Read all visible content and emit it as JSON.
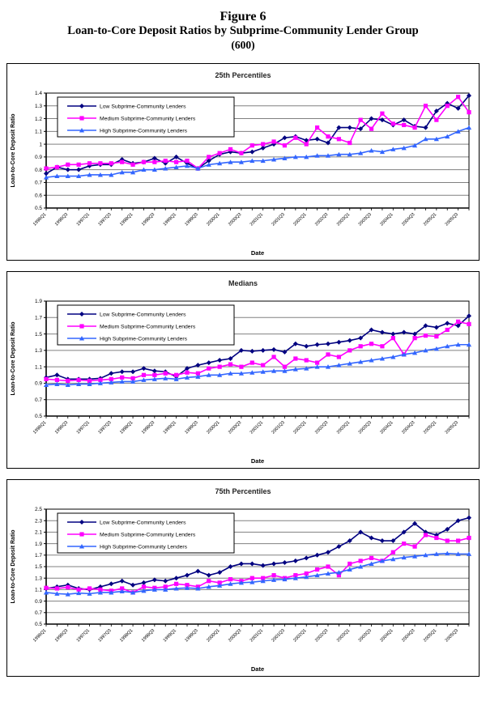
{
  "figure": {
    "title_line1": "Figure 6",
    "title_line2": "Loan-to-Core Deposit Ratios by Subprime-Community Lender Group",
    "title_line3": "(600)"
  },
  "colors": {
    "low": "#000080",
    "medium": "#FF00FF",
    "high": "#3366FF",
    "grid": "#808080",
    "axis": "#000000"
  },
  "chart_data": [
    {
      "type": "line",
      "title": "25th Percentiles",
      "xlabel": "Date",
      "ylabel": "Loan-to-Core Deposit Ratio",
      "ylim": [
        0.5,
        1.4
      ],
      "ytick_step": 0.1,
      "grid": true,
      "legend_position": "top-left",
      "xtick_every": 2,
      "x": [
        "1996Q1",
        "1996Q2",
        "1996Q3",
        "1996Q4",
        "1997Q1",
        "1997Q2",
        "1997Q3",
        "1997Q4",
        "1998Q1",
        "1998Q2",
        "1998Q3",
        "1998Q4",
        "1999Q1",
        "1999Q2",
        "1999Q3",
        "1999Q4",
        "2000Q1",
        "2000Q2",
        "2000Q3",
        "2000Q4",
        "2001Q1",
        "2001Q2",
        "2001Q3",
        "2001Q4",
        "2002Q1",
        "2002Q2",
        "2002Q3",
        "2002Q4",
        "2003Q1",
        "2003Q2",
        "2003Q3",
        "2003Q4",
        "2004Q1",
        "2004Q2",
        "2004Q3",
        "2004Q4",
        "2005Q1",
        "2005Q2",
        "2005Q3",
        "2005Q4"
      ],
      "series": [
        {
          "name": "Low Subprime-Community Lenders",
          "color": "#000080",
          "marker": "diamond",
          "values": [
            0.77,
            0.82,
            0.8,
            0.8,
            0.83,
            0.84,
            0.84,
            0.88,
            0.85,
            0.86,
            0.89,
            0.85,
            0.9,
            0.85,
            0.81,
            0.87,
            0.92,
            0.94,
            0.93,
            0.94,
            0.97,
            1.0,
            1.05,
            1.06,
            1.03,
            1.04,
            1.01,
            1.13,
            1.13,
            1.12,
            1.2,
            1.19,
            1.15,
            1.19,
            1.14,
            1.13,
            1.26,
            1.32,
            1.28,
            1.38
          ]
        },
        {
          "name": "Medium Subprime-Community Lenders",
          "color": "#FF00FF",
          "marker": "square",
          "values": [
            0.81,
            0.82,
            0.84,
            0.84,
            0.85,
            0.85,
            0.85,
            0.86,
            0.84,
            0.86,
            0.86,
            0.87,
            0.86,
            0.87,
            0.81,
            0.9,
            0.93,
            0.96,
            0.93,
            0.99,
            1.0,
            1.02,
            0.99,
            1.05,
            1.0,
            1.13,
            1.06,
            1.04,
            1.01,
            1.19,
            1.12,
            1.24,
            1.16,
            1.15,
            1.13,
            1.3,
            1.19,
            1.3,
            1.37,
            1.25
          ]
        },
        {
          "name": "High Subprime-Community Lenders",
          "color": "#3366FF",
          "marker": "triangle",
          "values": [
            0.74,
            0.75,
            0.75,
            0.75,
            0.76,
            0.76,
            0.76,
            0.78,
            0.78,
            0.8,
            0.8,
            0.81,
            0.82,
            0.83,
            0.81,
            0.84,
            0.85,
            0.86,
            0.86,
            0.87,
            0.87,
            0.88,
            0.89,
            0.9,
            0.9,
            0.91,
            0.91,
            0.92,
            0.92,
            0.93,
            0.95,
            0.94,
            0.96,
            0.97,
            0.99,
            1.04,
            1.04,
            1.06,
            1.1,
            1.13
          ]
        }
      ]
    },
    {
      "type": "line",
      "title": "Medians",
      "xlabel": "Date",
      "ylabel": "Loan-to-Core Deposit Ratio",
      "ylim": [
        0.5,
        1.9
      ],
      "ytick_step": 0.2,
      "grid": true,
      "legend_position": "top-left",
      "xtick_every": 2,
      "x": [
        "1996Q1",
        "1996Q2",
        "1996Q3",
        "1996Q4",
        "1997Q1",
        "1997Q2",
        "1997Q3",
        "1997Q4",
        "1998Q1",
        "1998Q2",
        "1998Q3",
        "1998Q4",
        "1999Q1",
        "1999Q2",
        "1999Q3",
        "1999Q4",
        "2000Q1",
        "2000Q2",
        "2000Q3",
        "2000Q4",
        "2001Q1",
        "2001Q2",
        "2001Q3",
        "2001Q4",
        "2002Q1",
        "2002Q2",
        "2002Q3",
        "2002Q4",
        "2003Q1",
        "2003Q2",
        "2003Q3",
        "2003Q4",
        "2004Q1",
        "2004Q2",
        "2004Q3",
        "2004Q4",
        "2005Q1",
        "2005Q2",
        "2005Q3",
        "2005Q4"
      ],
      "series": [
        {
          "name": "Low Subprime-Community Lenders",
          "color": "#000080",
          "marker": "diamond",
          "values": [
            0.97,
            1.0,
            0.95,
            0.95,
            0.95,
            0.96,
            1.02,
            1.04,
            1.04,
            1.08,
            1.05,
            1.04,
            0.98,
            1.08,
            1.12,
            1.15,
            1.18,
            1.2,
            1.3,
            1.29,
            1.3,
            1.31,
            1.28,
            1.38,
            1.35,
            1.37,
            1.38,
            1.4,
            1.42,
            1.45,
            1.55,
            1.52,
            1.5,
            1.52,
            1.5,
            1.6,
            1.58,
            1.63,
            1.6,
            1.72
          ]
        },
        {
          "name": "Medium Subprime-Community Lenders",
          "color": "#FF00FF",
          "marker": "square",
          "values": [
            0.95,
            0.94,
            0.93,
            0.94,
            0.93,
            0.94,
            0.95,
            0.97,
            0.96,
            1.0,
            1.0,
            1.02,
            1.0,
            1.03,
            1.02,
            1.08,
            1.1,
            1.13,
            1.1,
            1.15,
            1.12,
            1.22,
            1.1,
            1.2,
            1.18,
            1.15,
            1.25,
            1.22,
            1.3,
            1.35,
            1.38,
            1.35,
            1.45,
            1.25,
            1.45,
            1.48,
            1.47,
            1.55,
            1.65,
            1.62
          ]
        },
        {
          "name": "High Subprime-Community Lenders",
          "color": "#3366FF",
          "marker": "triangle",
          "values": [
            0.88,
            0.89,
            0.88,
            0.89,
            0.89,
            0.9,
            0.91,
            0.92,
            0.92,
            0.94,
            0.95,
            0.96,
            0.95,
            0.97,
            0.98,
            1.0,
            1.0,
            1.02,
            1.02,
            1.03,
            1.04,
            1.05,
            1.05,
            1.07,
            1.08,
            1.1,
            1.1,
            1.12,
            1.14,
            1.16,
            1.18,
            1.2,
            1.22,
            1.25,
            1.27,
            1.3,
            1.32,
            1.35,
            1.37,
            1.37
          ]
        }
      ]
    },
    {
      "type": "line",
      "title": "75th Percentiles",
      "xlabel": "Date",
      "ylabel": "Loan-to-Core Deposit Ratio",
      "ylim": [
        0.5,
        2.5
      ],
      "ytick_step": 0.2,
      "grid": true,
      "legend_position": "top-left",
      "xtick_every": 2,
      "x": [
        "1996Q1",
        "1996Q2",
        "1996Q3",
        "1996Q4",
        "1997Q1",
        "1997Q2",
        "1997Q3",
        "1997Q4",
        "1998Q1",
        "1998Q2",
        "1998Q3",
        "1998Q4",
        "1999Q1",
        "1999Q2",
        "1999Q3",
        "1999Q4",
        "2000Q1",
        "2000Q2",
        "2000Q3",
        "2000Q4",
        "2001Q1",
        "2001Q2",
        "2001Q3",
        "2001Q4",
        "2002Q1",
        "2002Q2",
        "2002Q3",
        "2002Q4",
        "2003Q1",
        "2003Q2",
        "2003Q3",
        "2003Q4",
        "2004Q1",
        "2004Q2",
        "2004Q3",
        "2004Q4",
        "2005Q1",
        "2005Q2",
        "2005Q3",
        "2005Q4"
      ],
      "series": [
        {
          "name": "Low Subprime-Community Lenders",
          "color": "#000080",
          "marker": "diamond",
          "values": [
            1.12,
            1.15,
            1.18,
            1.12,
            1.1,
            1.15,
            1.2,
            1.25,
            1.18,
            1.22,
            1.27,
            1.25,
            1.3,
            1.35,
            1.42,
            1.35,
            1.4,
            1.5,
            1.55,
            1.55,
            1.52,
            1.55,
            1.57,
            1.6,
            1.65,
            1.7,
            1.75,
            1.85,
            1.95,
            2.1,
            2.0,
            1.95,
            1.95,
            2.1,
            2.25,
            2.1,
            2.05,
            2.15,
            2.3,
            2.35
          ]
        },
        {
          "name": "Medium Subprime-Community Lenders",
          "color": "#FF00FF",
          "marker": "square",
          "values": [
            1.13,
            1.12,
            1.14,
            1.1,
            1.12,
            1.1,
            1.08,
            1.12,
            1.05,
            1.15,
            1.13,
            1.15,
            1.2,
            1.18,
            1.15,
            1.25,
            1.22,
            1.28,
            1.25,
            1.3,
            1.3,
            1.35,
            1.3,
            1.35,
            1.38,
            1.45,
            1.5,
            1.35,
            1.55,
            1.6,
            1.65,
            1.6,
            1.75,
            1.9,
            1.85,
            2.05,
            2.0,
            1.95,
            1.95,
            2.0
          ]
        },
        {
          "name": "High Subprime-Community Lenders",
          "color": "#3366FF",
          "marker": "triangle",
          "values": [
            1.05,
            1.03,
            1.02,
            1.04,
            1.03,
            1.05,
            1.05,
            1.07,
            1.05,
            1.08,
            1.1,
            1.1,
            1.12,
            1.13,
            1.12,
            1.15,
            1.17,
            1.2,
            1.22,
            1.23,
            1.25,
            1.27,
            1.28,
            1.3,
            1.32,
            1.35,
            1.38,
            1.4,
            1.45,
            1.5,
            1.55,
            1.6,
            1.63,
            1.66,
            1.68,
            1.7,
            1.72,
            1.73,
            1.72,
            1.72
          ]
        }
      ]
    }
  ]
}
